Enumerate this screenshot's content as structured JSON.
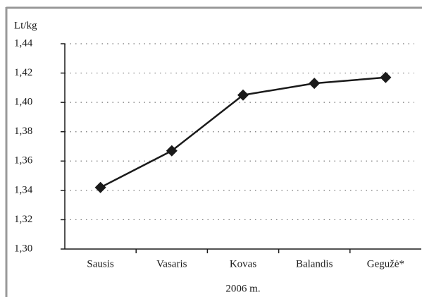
{
  "chart_data": {
    "type": "line",
    "y_label": "Lt/kg",
    "x_label": "2006 m.",
    "categories": [
      "Sausis",
      "Vasaris",
      "Kovas",
      "Balandis",
      "Gegužė*"
    ],
    "series": [
      {
        "name": "Lt/kg",
        "color": "#1a1a1a",
        "values": [
          1.342,
          1.367,
          1.405,
          1.413,
          1.417
        ]
      }
    ],
    "ylim": [
      1.3,
      1.44
    ],
    "yticks": [
      {
        "value": 1.3,
        "label": "1,30"
      },
      {
        "value": 1.32,
        "label": "1,32"
      },
      {
        "value": 1.34,
        "label": "1,34"
      },
      {
        "value": 1.36,
        "label": "1,36"
      },
      {
        "value": 1.38,
        "label": "1,38"
      },
      {
        "value": 1.4,
        "label": "1,40"
      },
      {
        "value": 1.42,
        "label": "1,42"
      },
      {
        "value": 1.44,
        "label": "1,44"
      }
    ],
    "grid": true
  }
}
